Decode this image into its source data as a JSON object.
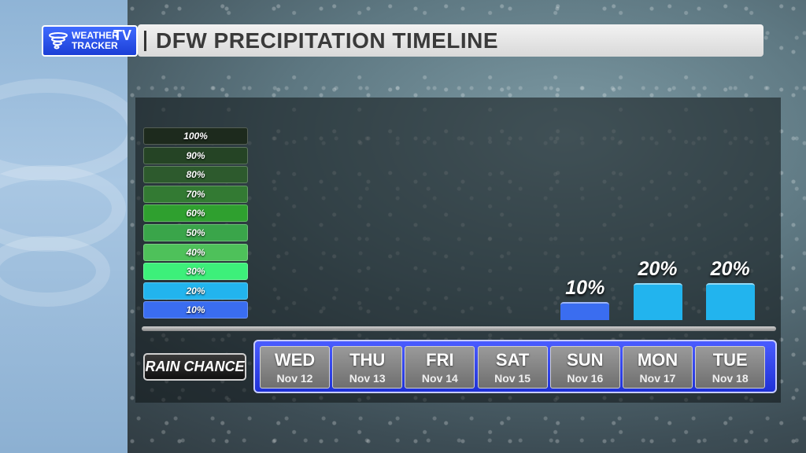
{
  "header": {
    "title": "DFW PRECIPITATION TIMELINE"
  },
  "logo": {
    "line1": "WEATHER",
    "line2": "TRACKER",
    "tv": "TV",
    "icon": "tornado-icon"
  },
  "legend": {
    "items": [
      {
        "label": "100%",
        "color": "#1d2a1d"
      },
      {
        "label": "90%",
        "color": "#254425"
      },
      {
        "label": "80%",
        "color": "#2d5a2d"
      },
      {
        "label": "70%",
        "color": "#337a33"
      },
      {
        "label": "60%",
        "color": "#2fa02f"
      },
      {
        "label": "50%",
        "color": "#3aa54a"
      },
      {
        "label": "40%",
        "color": "#4ec15a"
      },
      {
        "label": "30%",
        "color": "#3df07a"
      },
      {
        "label": "20%",
        "color": "#22b4ee"
      },
      {
        "label": "10%",
        "color": "#3a6df0"
      }
    ]
  },
  "rain_chance_label": "RAIN CHANCE",
  "chart_data": {
    "type": "bar",
    "categories": [
      "WED",
      "THU",
      "FRI",
      "SAT",
      "SUN",
      "MON",
      "TUE"
    ],
    "dates": [
      "Nov 12",
      "Nov 13",
      "Nov 14",
      "Nov 15",
      "Nov 16",
      "Nov 17",
      "Nov 18"
    ],
    "values": [
      0,
      0,
      0,
      0,
      10,
      20,
      20
    ],
    "data_labels": [
      "",
      "",
      "",
      "",
      "10%",
      "20%",
      "20%"
    ],
    "ylim": [
      0,
      100
    ],
    "bar_colors": {
      "10": "#3a6df0",
      "20": "#22b4ee"
    }
  }
}
